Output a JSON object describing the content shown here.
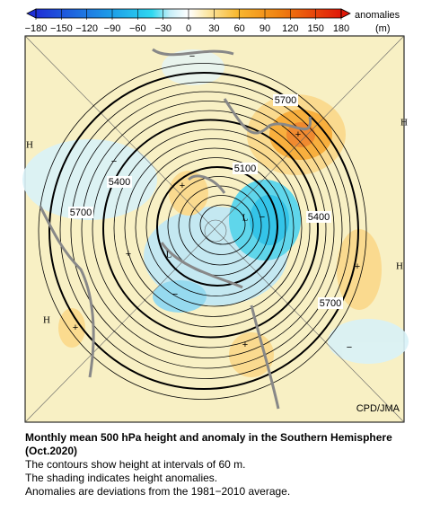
{
  "colorbar": {
    "ticks": [
      "−180",
      "−150",
      "−120",
      "−90",
      "−60",
      "−30",
      "0",
      "30",
      "60",
      "90",
      "120",
      "150",
      "180"
    ],
    "title": "anomalies",
    "unit": "(m)"
  },
  "map": {
    "contour_labels": [
      "5700",
      "5400",
      "5100",
      "5700",
      "5400",
      "5700"
    ],
    "highs": [
      "H",
      "H",
      "H",
      "H"
    ],
    "lows": [
      "L",
      "L"
    ],
    "positive": [
      "+",
      "+",
      "+",
      "+",
      "+",
      "+"
    ],
    "negative": [
      "−",
      "−",
      "−",
      "−",
      "−"
    ],
    "credit": "CPD/JMA"
  },
  "caption": {
    "title": "Monthly mean 500 hPa height and anomaly in the Southern Hemisphere (Oct.2020)",
    "lines": [
      "The contours show height at intervals of 60 m.",
      "The shading indicates height anomalies.",
      "Anomalies are deviations from the 1981−2010 average."
    ]
  }
}
